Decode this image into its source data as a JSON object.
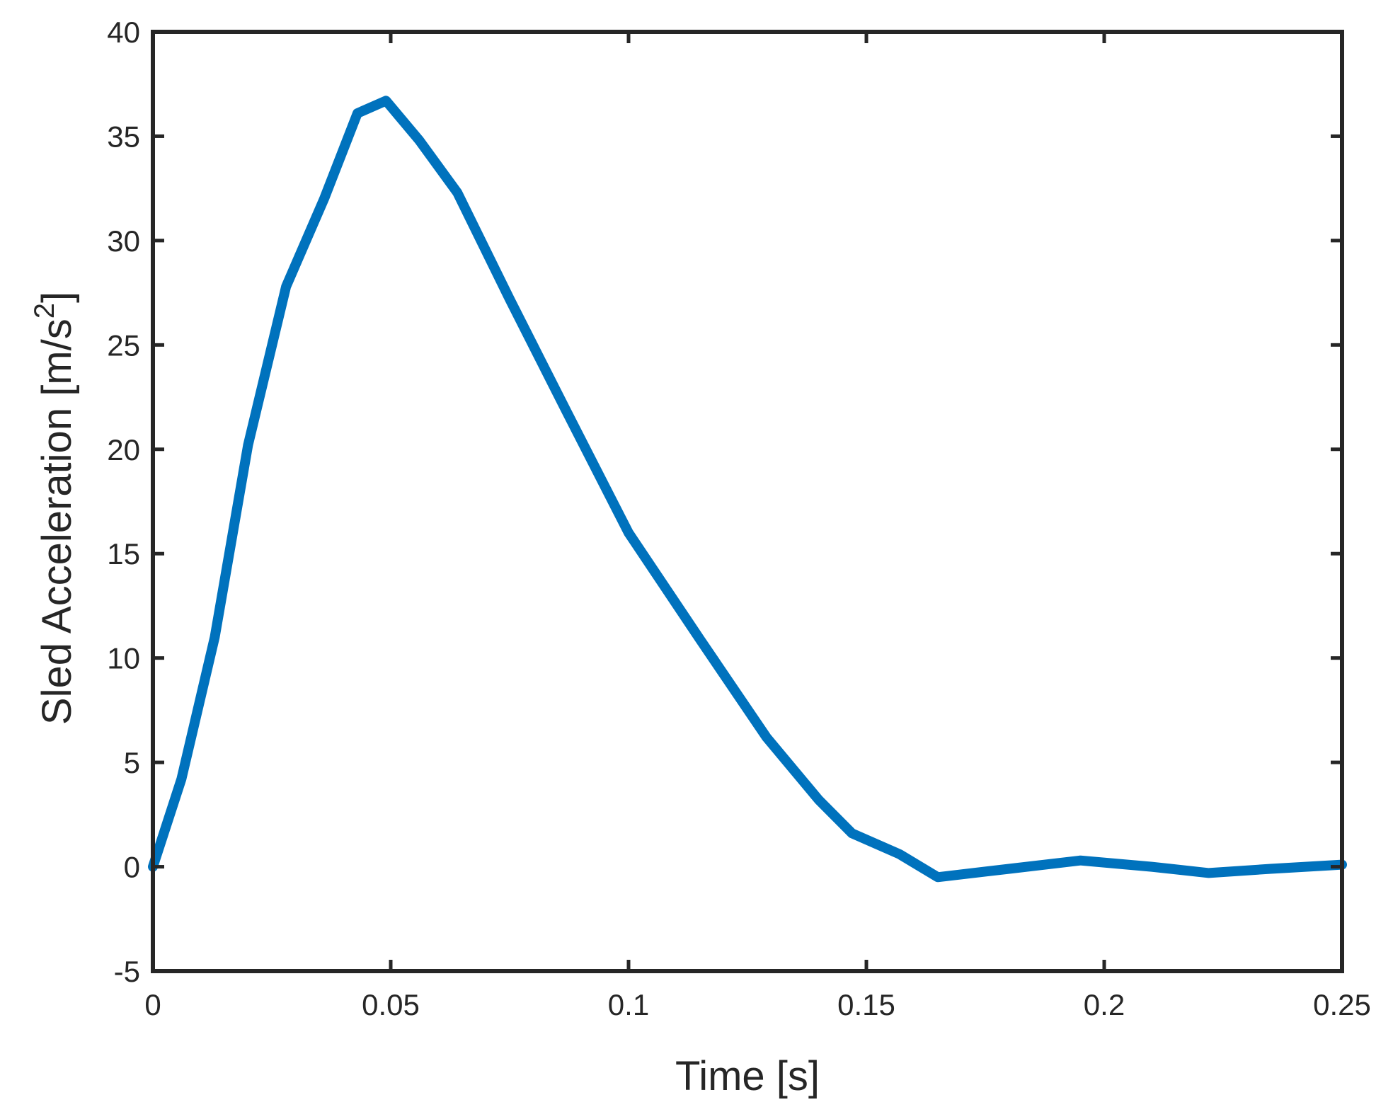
{
  "chart_data": {
    "type": "line",
    "title": "",
    "xlabel": "Time [s]",
    "ylabel": {
      "text": "Sled Acceleration [m/s",
      "superscript": "2",
      "suffix": "]"
    },
    "xlim": [
      0,
      0.25
    ],
    "ylim": [
      -5,
      40
    ],
    "xticks": [
      0,
      0.05,
      0.1,
      0.15,
      0.2,
      0.25
    ],
    "xtick_labels": [
      "0",
      "0.05",
      "0.1",
      "0.15",
      "0.2",
      "0.25"
    ],
    "yticks": [
      -5,
      0,
      5,
      10,
      15,
      20,
      25,
      30,
      35,
      40
    ],
    "ytick_labels": [
      "-5",
      "0",
      "5",
      "10",
      "15",
      "20",
      "25",
      "30",
      "35",
      "40"
    ],
    "grid": false,
    "series": [
      {
        "color": "#0072BD",
        "x": [
          0,
          0.006,
          0.013,
          0.02,
          0.028,
          0.036,
          0.043,
          0.049,
          0.056,
          0.064,
          0.075,
          0.087,
          0.1,
          0.115,
          0.129,
          0.14,
          0.147,
          0.157,
          0.165,
          0.18,
          0.195,
          0.21,
          0.222,
          0.235,
          0.25
        ],
        "y": [
          0,
          4.2,
          11,
          20.2,
          27.8,
          32,
          36.1,
          36.7,
          34.8,
          32.3,
          27.2,
          21.8,
          16,
          10.9,
          6.2,
          3.2,
          1.6,
          0.6,
          -0.5,
          -0.1,
          0.3,
          0,
          -0.3,
          -0.1,
          0.1
        ]
      }
    ]
  }
}
